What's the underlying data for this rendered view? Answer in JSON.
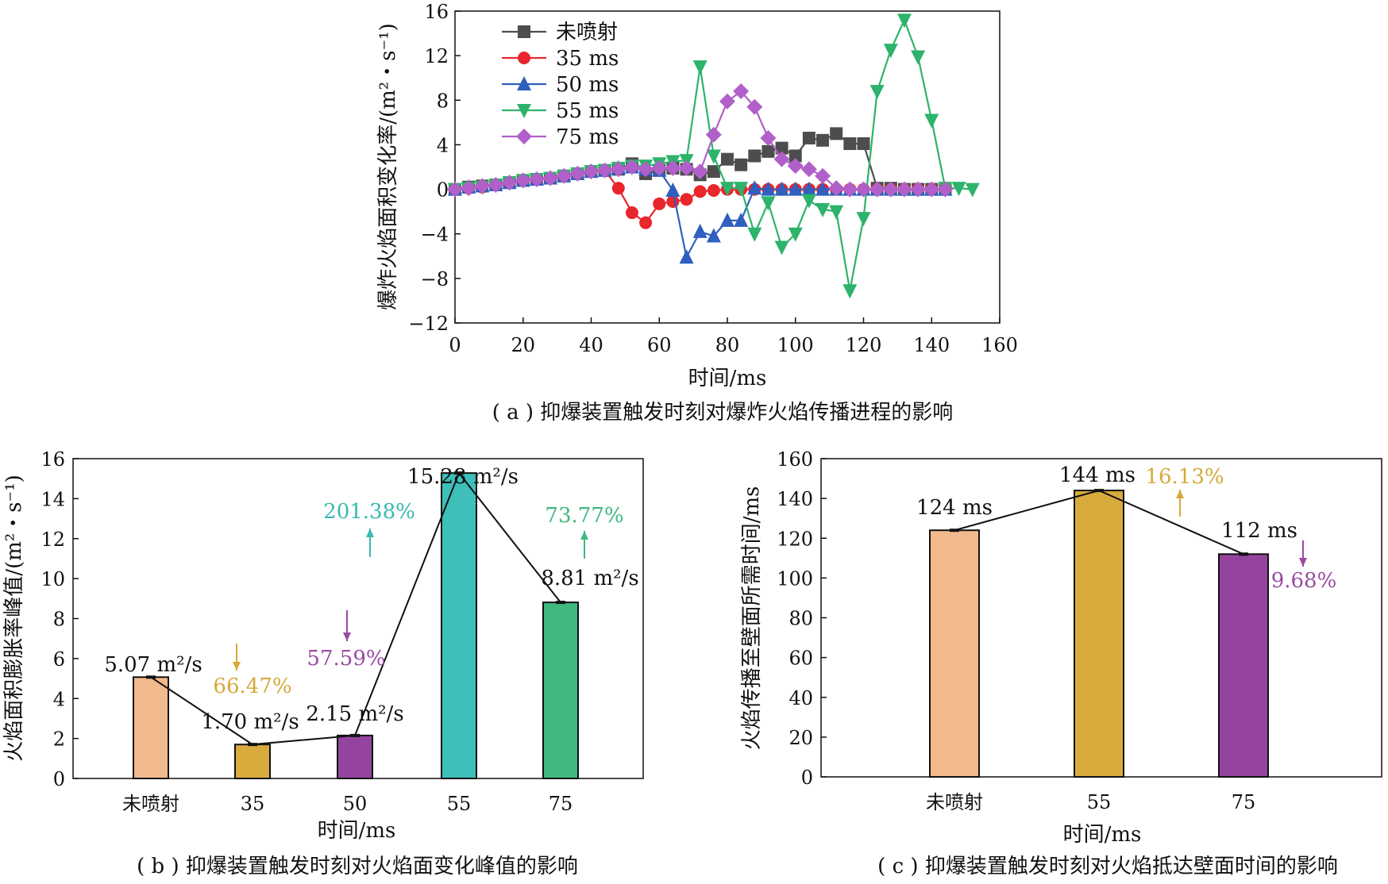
{
  "colors": {
    "untreated": "#4d4d4d",
    "s35": "#e8262b",
    "s50": "#2f5fbf",
    "s55": "#2db36b",
    "s75": "#b15fc9",
    "bar_untreated": "#f2b98c",
    "bar_35": "#d8ac3c",
    "bar_50": "#94449e",
    "bar_55": "#3ebfba",
    "bar_75": "#3fb87f",
    "pct_gold": "#d6a93a",
    "pct_purple": "#9b4aa3",
    "pct_teal": "#3ab9b2"
  },
  "chart_data": [
    {
      "type": "line",
      "caption": "( a ) 抑爆装置触发时刻对爆炸火焰传播进程的影响",
      "xlabel": "时间/ms",
      "ylabel": "爆炸火焰面积变化率/(m²・s⁻¹)",
      "xlim": [
        0,
        160
      ],
      "ylim": [
        -12,
        16
      ],
      "xticks": [
        0,
        20,
        40,
        60,
        80,
        100,
        120,
        140,
        160
      ],
      "yticks": [
        -12,
        -8,
        -4,
        0,
        4,
        8,
        12,
        16
      ],
      "grid": false,
      "legend_position": "top-left",
      "series": [
        {
          "name": "未喷射",
          "color_key": "untreated",
          "marker": "square",
          "x": [
            0,
            4,
            8,
            12,
            16,
            20,
            24,
            28,
            32,
            36,
            40,
            44,
            48,
            52,
            56,
            60,
            64,
            68,
            72,
            76,
            80,
            84,
            88,
            92,
            96,
            100,
            104,
            108,
            112,
            116,
            120,
            124,
            128,
            132,
            136,
            140,
            144
          ],
          "y": [
            0,
            0.2,
            0.3,
            0.4,
            0.6,
            0.8,
            0.9,
            1.0,
            1.2,
            1.4,
            1.6,
            1.7,
            1.8,
            2.3,
            1.4,
            1.7,
            1.9,
            1.8,
            1.3,
            1.6,
            2.7,
            2.2,
            3.0,
            3.4,
            3.7,
            3.0,
            4.6,
            4.4,
            5.0,
            4.1,
            4.1,
            0.1,
            0.1,
            0,
            0,
            0,
            0
          ]
        },
        {
          "name": "35 ms",
          "color_key": "s35",
          "marker": "circle",
          "x": [
            0,
            4,
            8,
            12,
            16,
            20,
            24,
            28,
            32,
            36,
            40,
            44,
            48,
            52,
            56,
            60,
            64,
            68,
            72,
            76,
            80,
            84,
            88,
            92,
            96,
            100,
            104,
            108,
            112,
            116,
            120,
            124,
            128,
            132,
            136,
            140,
            144
          ],
          "y": [
            0,
            0.1,
            0.2,
            0.4,
            0.6,
            0.8,
            0.9,
            1.0,
            1.2,
            1.4,
            1.6,
            1.7,
            0.1,
            -2.1,
            -3.0,
            -1.3,
            -1.1,
            -0.9,
            -0.2,
            -0.1,
            0,
            0,
            0,
            0,
            0,
            0,
            0,
            0,
            0,
            0,
            0,
            0,
            0,
            0,
            0,
            0,
            0
          ]
        },
        {
          "name": "50 ms",
          "color_key": "s50",
          "marker": "triangle-up",
          "x": [
            0,
            4,
            8,
            12,
            16,
            20,
            24,
            28,
            32,
            36,
            40,
            44,
            48,
            52,
            56,
            60,
            64,
            68,
            72,
            76,
            80,
            84,
            88,
            92,
            96,
            100,
            104,
            108,
            112,
            116,
            120,
            124,
            128,
            132,
            136,
            140,
            144
          ],
          "y": [
            0,
            0.2,
            0.3,
            0.4,
            0.6,
            0.8,
            0.9,
            1.0,
            1.2,
            1.4,
            1.6,
            1.7,
            1.9,
            2.0,
            1.8,
            1.7,
            -0.1,
            -6.1,
            -3.8,
            -4.2,
            -2.8,
            -2.8,
            0.1,
            0,
            0,
            0,
            0,
            0,
            0,
            0,
            0,
            0,
            0,
            0,
            0,
            0,
            0
          ]
        },
        {
          "name": "55 ms",
          "color_key": "s55",
          "marker": "triangle-down",
          "x": [
            0,
            4,
            8,
            12,
            16,
            20,
            24,
            28,
            32,
            36,
            40,
            44,
            48,
            52,
            56,
            60,
            64,
            68,
            72,
            76,
            80,
            84,
            88,
            92,
            96,
            100,
            104,
            108,
            112,
            116,
            120,
            124,
            128,
            132,
            136,
            140,
            144,
            148,
            152
          ],
          "y": [
            0,
            0.1,
            0.2,
            0.4,
            0.6,
            0.8,
            0.9,
            1.0,
            1.2,
            1.4,
            1.6,
            1.7,
            1.9,
            2.1,
            2.1,
            2.3,
            2.5,
            2.6,
            11.0,
            3.0,
            0.1,
            0.1,
            -4.0,
            -1.2,
            -5.2,
            -4.0,
            -1.0,
            -1.8,
            -2.0,
            -9.1,
            -2.6,
            8.8,
            12.5,
            15.2,
            11.9,
            6.2,
            0.1,
            0.1,
            0
          ]
        },
        {
          "name": "75 ms",
          "color_key": "s75",
          "marker": "diamond",
          "x": [
            0,
            4,
            8,
            12,
            16,
            20,
            24,
            28,
            32,
            36,
            40,
            44,
            48,
            52,
            56,
            60,
            64,
            68,
            72,
            76,
            80,
            84,
            88,
            92,
            96,
            100,
            104,
            108,
            112,
            116,
            120,
            124,
            128,
            132,
            136,
            140,
            144
          ],
          "y": [
            0,
            0.1,
            0.3,
            0.4,
            0.6,
            0.8,
            0.9,
            1.0,
            1.2,
            1.4,
            1.6,
            1.7,
            1.8,
            2.0,
            1.8,
            1.9,
            1.9,
            1.9,
            1.6,
            4.9,
            7.9,
            8.8,
            7.4,
            4.6,
            2.7,
            2.1,
            1.8,
            1.2,
            0.1,
            0,
            0,
            0,
            0,
            0,
            0,
            0,
            0
          ]
        }
      ]
    },
    {
      "type": "bar",
      "caption": "( b ) 抑爆装置触发时刻对火焰面变化峰值的影响",
      "xlabel": "时间/ms",
      "ylabel": "火焰面积膨胀率峰值/(m²・s⁻¹)",
      "ylim": [
        0,
        16
      ],
      "yticks": [
        0,
        2,
        4,
        6,
        8,
        10,
        12,
        14,
        16
      ],
      "categories": [
        "未喷射",
        "35",
        "50",
        "55",
        "75"
      ],
      "values": [
        5.07,
        1.7,
        2.15,
        15.28,
        8.81
      ],
      "bar_color_keys": [
        "bar_untreated",
        "bar_35",
        "bar_50",
        "bar_55",
        "bar_75"
      ],
      "data_labels": [
        "5.07 m²/s",
        "1.70 m²/s",
        "2.15 m²/s",
        "15.28 m²/s",
        "8.81 m²/s"
      ],
      "annotations": [
        {
          "text": "66.47%",
          "direction": "down",
          "color_key": "pct_gold"
        },
        {
          "text": "57.59%",
          "direction": "down",
          "color_key": "pct_purple"
        },
        {
          "text": "201.38%",
          "direction": "up",
          "color_key": "pct_teal"
        },
        {
          "text": "73.77%",
          "direction": "up",
          "color_key": "bar_75"
        }
      ]
    },
    {
      "type": "bar",
      "caption": "( c ) 抑爆装置触发时刻对火焰抵达壁面时间的影响",
      "xlabel": "时间/ms",
      "ylabel": "火焰传播至壁面所需时间/ms",
      "ylim": [
        0,
        160
      ],
      "yticks": [
        0,
        20,
        40,
        60,
        80,
        100,
        120,
        140,
        160
      ],
      "categories": [
        "未喷射",
        "55",
        "75"
      ],
      "values": [
        124,
        144,
        112
      ],
      "bar_color_keys": [
        "bar_untreated",
        "bar_35",
        "bar_50"
      ],
      "data_labels": [
        "124 ms",
        "144 ms",
        "112 ms"
      ],
      "annotations": [
        {
          "text": "16.13%",
          "direction": "up",
          "color_key": "pct_gold"
        },
        {
          "text": "9.68%",
          "direction": "down",
          "color_key": "pct_purple"
        }
      ]
    }
  ]
}
